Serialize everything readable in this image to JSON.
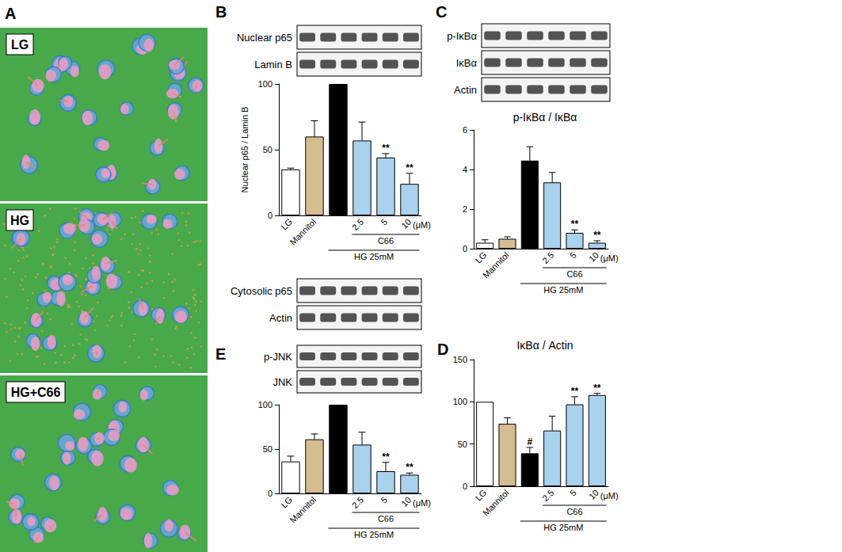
{
  "panel_A": {
    "label": "A",
    "images": [
      "LG",
      "HG",
      "HG+C66"
    ]
  },
  "chart_data": [
    {
      "panel": "B",
      "type": "bar",
      "y_label": "Nuclear p65 / Lamin B",
      "blots": [
        "Nuclear p65",
        "Lamin B"
      ],
      "blots_below": [
        "Cytosolic p65",
        "Actin"
      ],
      "categories": [
        "LG",
        "Mannitol",
        null,
        "2.5",
        "5",
        "10"
      ],
      "values": [
        35,
        60,
        100,
        57,
        44,
        24
      ],
      "errors": [
        1,
        12,
        0,
        14,
        3,
        8
      ],
      "significance": [
        null,
        null,
        null,
        null,
        "**",
        "**"
      ],
      "colors": [
        "#ffffff",
        "#d4bd8e",
        "#000000",
        "#a8d2ee",
        "#a8d2ee",
        "#a8d2ee"
      ],
      "x_unit": "(μM)",
      "groups": [
        {
          "label": "C66",
          "from": 3,
          "to": 5
        },
        {
          "label": "HG 25mM",
          "from": 2,
          "to": 5
        }
      ],
      "ylim": [
        0,
        100
      ],
      "yticks": [
        0,
        50,
        100
      ],
      "grid": false
    },
    {
      "panel": "C",
      "type": "bar",
      "title": "p-IκBα / IκBα",
      "blots": [
        "p-IκBα",
        "IκBα",
        "Actin"
      ],
      "categories": [
        "LG",
        "Mannitol",
        null,
        "2.5",
        "5",
        "10"
      ],
      "values": [
        0.3,
        0.5,
        4.45,
        3.35,
        0.8,
        0.3
      ],
      "errors": [
        0.15,
        0.1,
        0.7,
        0.5,
        0.15,
        0.1
      ],
      "significance": [
        null,
        null,
        null,
        null,
        "**",
        "**"
      ],
      "colors": [
        "#ffffff",
        "#d4bd8e",
        "#000000",
        "#a8d2ee",
        "#a8d2ee",
        "#a8d2ee"
      ],
      "x_unit": "(μM)",
      "groups": [
        {
          "label": "C66",
          "from": 3,
          "to": 5
        },
        {
          "label": "HG 25mM",
          "from": 2,
          "to": 5
        }
      ],
      "ylim": [
        0,
        6
      ],
      "yticks": [
        0,
        2,
        4,
        6
      ],
      "grid": false
    },
    {
      "panel": "D",
      "type": "bar",
      "title": "IκBα / Actin",
      "categories": [
        "LG",
        "Mannitol",
        null,
        "2.5",
        "5",
        "10"
      ],
      "values": [
        100,
        74,
        39,
        66,
        97,
        108
      ],
      "errors": [
        0,
        7,
        7,
        17,
        9,
        2
      ],
      "significance": [
        null,
        null,
        "#",
        null,
        "**",
        "**"
      ],
      "colors": [
        "#ffffff",
        "#d4bd8e",
        "#000000",
        "#a8d2ee",
        "#a8d2ee",
        "#a8d2ee"
      ],
      "x_unit": "(μM)",
      "groups": [
        {
          "label": "C66",
          "from": 3,
          "to": 5
        },
        {
          "label": "HG 25mM",
          "from": 2,
          "to": 5
        }
      ],
      "ylim": [
        0,
        150
      ],
      "yticks": [
        0,
        50,
        100,
        150
      ],
      "grid": false
    },
    {
      "panel": "E",
      "type": "bar",
      "blots": [
        "p-JNK",
        "JNK"
      ],
      "categories": [
        "LG",
        "Mannitol",
        null,
        "2.5",
        "5",
        "10"
      ],
      "values": [
        36,
        61,
        100,
        55,
        25,
        21
      ],
      "errors": [
        6,
        6,
        0,
        14,
        10,
        2
      ],
      "significance": [
        null,
        null,
        null,
        null,
        "**",
        "**"
      ],
      "colors": [
        "#ffffff",
        "#d4bd8e",
        "#000000",
        "#a8d2ee",
        "#a8d2ee",
        "#a8d2ee"
      ],
      "x_unit": "(μM)",
      "groups": [
        {
          "label": "C66",
          "from": 3,
          "to": 5
        },
        {
          "label": "HG 25mM",
          "from": 2,
          "to": 5
        }
      ],
      "ylim": [
        0,
        100
      ],
      "yticks": [
        0,
        50,
        100
      ],
      "grid": false
    }
  ]
}
